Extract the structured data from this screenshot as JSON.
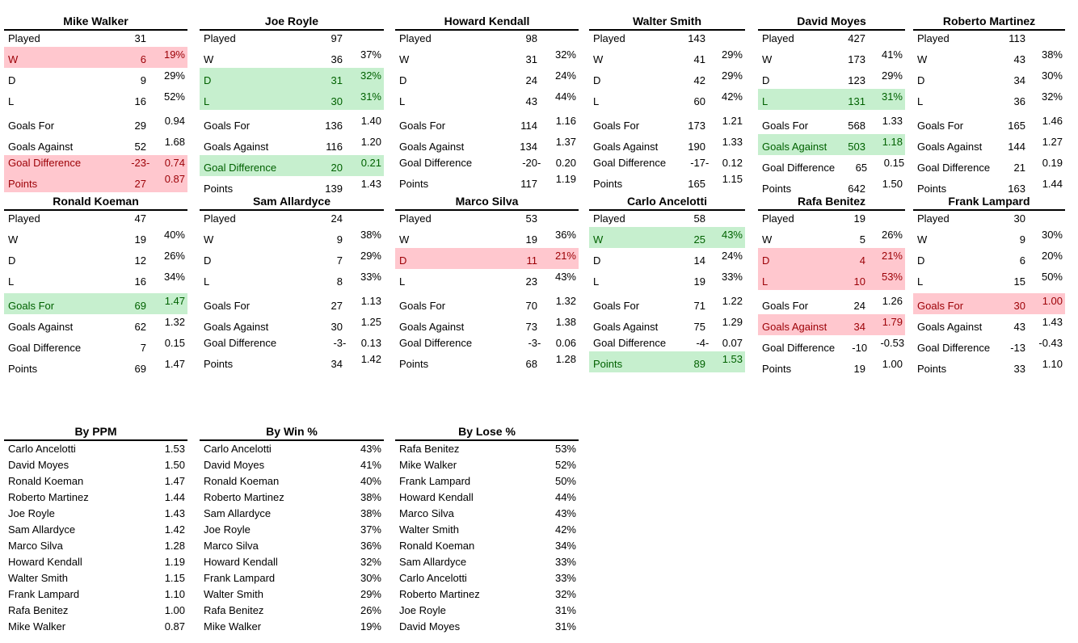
{
  "colors": {
    "bad_bg": "#FFC7CE",
    "bad_text": "#9C0006",
    "good_bg": "#C6EFCE",
    "good_text": "#006100"
  },
  "manager_tables": [
    {
      "title": "Mike Walker",
      "rows": [
        {
          "label": "Played",
          "value": "31",
          "sign": "",
          "pct": "",
          "hl": ""
        },
        {
          "label": "W",
          "value": "6",
          "sign": "",
          "pct": "19%",
          "hl": "bad"
        },
        {
          "label": "D",
          "value": "9",
          "sign": "",
          "pct": "29%",
          "hl": ""
        },
        {
          "label": "L",
          "value": "16",
          "sign": "",
          "pct": "52%",
          "hl": ""
        },
        {
          "label": "Goals For",
          "value": "29",
          "sign": "",
          "pct": "0.94",
          "hl": ""
        },
        {
          "label": "Goals Against",
          "value": "52",
          "sign": "",
          "pct": "1.68",
          "hl": ""
        },
        {
          "label": "Goal Difference",
          "value": "-23",
          "sign": "-",
          "pct": "0.74",
          "hl": "bad"
        },
        {
          "label": "Points",
          "value": "27",
          "sign": "",
          "pct": "0.87",
          "hl": "bad"
        }
      ]
    },
    {
      "title": "Joe Royle",
      "rows": [
        {
          "label": "Played",
          "value": "97",
          "sign": "",
          "pct": "",
          "hl": ""
        },
        {
          "label": "W",
          "value": "36",
          "sign": "",
          "pct": "37%",
          "hl": ""
        },
        {
          "label": "D",
          "value": "31",
          "sign": "",
          "pct": "32%",
          "hl": "good"
        },
        {
          "label": "L",
          "value": "30",
          "sign": "",
          "pct": "31%",
          "hl": "good"
        },
        {
          "label": "Goals For",
          "value": "136",
          "sign": "",
          "pct": "1.40",
          "hl": ""
        },
        {
          "label": "Goals Against",
          "value": "116",
          "sign": "",
          "pct": "1.20",
          "hl": ""
        },
        {
          "label": "Goal Difference",
          "value": "20",
          "sign": "",
          "pct": "0.21",
          "hl": "good"
        },
        {
          "label": "Points",
          "value": "139",
          "sign": "",
          "pct": "1.43",
          "hl": ""
        }
      ]
    },
    {
      "title": "Howard Kendall",
      "rows": [
        {
          "label": "Played",
          "value": "98",
          "sign": "",
          "pct": "",
          "hl": ""
        },
        {
          "label": "W",
          "value": "31",
          "sign": "",
          "pct": "32%",
          "hl": ""
        },
        {
          "label": "D",
          "value": "24",
          "sign": "",
          "pct": "24%",
          "hl": ""
        },
        {
          "label": "L",
          "value": "43",
          "sign": "",
          "pct": "44%",
          "hl": ""
        },
        {
          "label": "Goals For",
          "value": "114",
          "sign": "",
          "pct": "1.16",
          "hl": ""
        },
        {
          "label": "Goals Against",
          "value": "134",
          "sign": "",
          "pct": "1.37",
          "hl": ""
        },
        {
          "label": "Goal Difference",
          "value": "-20",
          "sign": "-",
          "pct": "0.20",
          "hl": ""
        },
        {
          "label": "Points",
          "value": "117",
          "sign": "",
          "pct": "1.19",
          "hl": ""
        }
      ]
    },
    {
      "title": "Walter Smith",
      "rows": [
        {
          "label": "Played",
          "value": "143",
          "sign": "",
          "pct": "",
          "hl": ""
        },
        {
          "label": "W",
          "value": "41",
          "sign": "",
          "pct": "29%",
          "hl": ""
        },
        {
          "label": "D",
          "value": "42",
          "sign": "",
          "pct": "29%",
          "hl": ""
        },
        {
          "label": "L",
          "value": "60",
          "sign": "",
          "pct": "42%",
          "hl": ""
        },
        {
          "label": "Goals For",
          "value": "173",
          "sign": "",
          "pct": "1.21",
          "hl": ""
        },
        {
          "label": "Goals Against",
          "value": "190",
          "sign": "",
          "pct": "1.33",
          "hl": ""
        },
        {
          "label": "Goal Difference",
          "value": "-17",
          "sign": "-",
          "pct": "0.12",
          "hl": ""
        },
        {
          "label": "Points",
          "value": "165",
          "sign": "",
          "pct": "1.15",
          "hl": ""
        }
      ]
    },
    {
      "title": "David Moyes",
      "rows": [
        {
          "label": "Played",
          "value": "427",
          "sign": "",
          "pct": "",
          "hl": ""
        },
        {
          "label": "W",
          "value": "173",
          "sign": "",
          "pct": "41%",
          "hl": ""
        },
        {
          "label": "D",
          "value": "123",
          "sign": "",
          "pct": "29%",
          "hl": ""
        },
        {
          "label": "L",
          "value": "131",
          "sign": "",
          "pct": "31%",
          "hl": "good"
        },
        {
          "label": "Goals For",
          "value": "568",
          "sign": "",
          "pct": "1.33",
          "hl": ""
        },
        {
          "label": "Goals Against",
          "value": "503",
          "sign": "",
          "pct": "1.18",
          "hl": "good"
        },
        {
          "label": "Goal Difference",
          "value": "65",
          "sign": "",
          "pct": "0.15",
          "hl": ""
        },
        {
          "label": "Points",
          "value": "642",
          "sign": "",
          "pct": "1.50",
          "hl": ""
        }
      ]
    },
    {
      "title": "Roberto Martinez",
      "rows": [
        {
          "label": "Played",
          "value": "113",
          "sign": "",
          "pct": "",
          "hl": ""
        },
        {
          "label": "W",
          "value": "43",
          "sign": "",
          "pct": "38%",
          "hl": ""
        },
        {
          "label": "D",
          "value": "34",
          "sign": "",
          "pct": "30%",
          "hl": ""
        },
        {
          "label": "L",
          "value": "36",
          "sign": "",
          "pct": "32%",
          "hl": ""
        },
        {
          "label": "Goals For",
          "value": "165",
          "sign": "",
          "pct": "1.46",
          "hl": ""
        },
        {
          "label": "Goals Against",
          "value": "144",
          "sign": "",
          "pct": "1.27",
          "hl": ""
        },
        {
          "label": "Goal Difference",
          "value": "21",
          "sign": "",
          "pct": "0.19",
          "hl": ""
        },
        {
          "label": "Points",
          "value": "163",
          "sign": "",
          "pct": "1.44",
          "hl": ""
        }
      ]
    },
    {
      "title": "Ronald Koeman",
      "rows": [
        {
          "label": "Played",
          "value": "47",
          "sign": "",
          "pct": "",
          "hl": ""
        },
        {
          "label": "W",
          "value": "19",
          "sign": "",
          "pct": "40%",
          "hl": ""
        },
        {
          "label": "D",
          "value": "12",
          "sign": "",
          "pct": "26%",
          "hl": ""
        },
        {
          "label": "L",
          "value": "16",
          "sign": "",
          "pct": "34%",
          "hl": ""
        },
        {
          "label": "Goals For",
          "value": "69",
          "sign": "",
          "pct": "1.47",
          "hl": "good"
        },
        {
          "label": "Goals Against",
          "value": "62",
          "sign": "",
          "pct": "1.32",
          "hl": ""
        },
        {
          "label": "Goal Difference",
          "value": "7",
          "sign": "",
          "pct": "0.15",
          "hl": ""
        },
        {
          "label": "Points",
          "value": "69",
          "sign": "",
          "pct": "1.47",
          "hl": ""
        }
      ]
    },
    {
      "title": "Sam Allardyce",
      "rows": [
        {
          "label": "Played",
          "value": "24",
          "sign": "",
          "pct": "",
          "hl": ""
        },
        {
          "label": "W",
          "value": "9",
          "sign": "",
          "pct": "38%",
          "hl": ""
        },
        {
          "label": "D",
          "value": "7",
          "sign": "",
          "pct": "29%",
          "hl": ""
        },
        {
          "label": "L",
          "value": "8",
          "sign": "",
          "pct": "33%",
          "hl": ""
        },
        {
          "label": "Goals For",
          "value": "27",
          "sign": "",
          "pct": "1.13",
          "hl": ""
        },
        {
          "label": "Goals Against",
          "value": "30",
          "sign": "",
          "pct": "1.25",
          "hl": ""
        },
        {
          "label": "Goal Difference",
          "value": "-3",
          "sign": "-",
          "pct": "0.13",
          "hl": ""
        },
        {
          "label": "Points",
          "value": "34",
          "sign": "",
          "pct": "1.42",
          "hl": ""
        }
      ]
    },
    {
      "title": "Marco Silva",
      "rows": [
        {
          "label": "Played",
          "value": "53",
          "sign": "",
          "pct": "",
          "hl": ""
        },
        {
          "label": "W",
          "value": "19",
          "sign": "",
          "pct": "36%",
          "hl": ""
        },
        {
          "label": "D",
          "value": "11",
          "sign": "",
          "pct": "21%",
          "hl": "bad"
        },
        {
          "label": "L",
          "value": "23",
          "sign": "",
          "pct": "43%",
          "hl": ""
        },
        {
          "label": "Goals For",
          "value": "70",
          "sign": "",
          "pct": "1.32",
          "hl": ""
        },
        {
          "label": "Goals Against",
          "value": "73",
          "sign": "",
          "pct": "1.38",
          "hl": ""
        },
        {
          "label": "Goal Difference",
          "value": "-3",
          "sign": "-",
          "pct": "0.06",
          "hl": ""
        },
        {
          "label": "Points",
          "value": "68",
          "sign": "",
          "pct": "1.28",
          "hl": ""
        }
      ]
    },
    {
      "title": "Carlo Ancelotti",
      "rows": [
        {
          "label": "Played",
          "value": "58",
          "sign": "",
          "pct": "",
          "hl": ""
        },
        {
          "label": "W",
          "value": "25",
          "sign": "",
          "pct": "43%",
          "hl": "good"
        },
        {
          "label": "D",
          "value": "14",
          "sign": "",
          "pct": "24%",
          "hl": ""
        },
        {
          "label": "L",
          "value": "19",
          "sign": "",
          "pct": "33%",
          "hl": ""
        },
        {
          "label": "Goals For",
          "value": "71",
          "sign": "",
          "pct": "1.22",
          "hl": ""
        },
        {
          "label": "Goals Against",
          "value": "75",
          "sign": "",
          "pct": "1.29",
          "hl": ""
        },
        {
          "label": "Goal Difference",
          "value": "-4",
          "sign": "-",
          "pct": "0.07",
          "hl": ""
        },
        {
          "label": "Points",
          "value": "89",
          "sign": "",
          "pct": "1.53",
          "hl": "good"
        }
      ]
    },
    {
      "title": "Rafa Benitez",
      "rows": [
        {
          "label": "Played",
          "value": "19",
          "sign": "",
          "pct": "",
          "hl": ""
        },
        {
          "label": "W",
          "value": "5",
          "sign": "",
          "pct": "26%",
          "hl": ""
        },
        {
          "label": "D",
          "value": "4",
          "sign": "",
          "pct": "21%",
          "hl": "bad"
        },
        {
          "label": "L",
          "value": "10",
          "sign": "",
          "pct": "53%",
          "hl": "bad"
        },
        {
          "label": "Goals For",
          "value": "24",
          "sign": "",
          "pct": "1.26",
          "hl": ""
        },
        {
          "label": "Goals Against",
          "value": "34",
          "sign": "",
          "pct": "1.79",
          "hl": "bad"
        },
        {
          "label": "Goal Difference",
          "value": "-10",
          "sign": "",
          "pct": "-0.53",
          "hl": ""
        },
        {
          "label": "Points",
          "value": "19",
          "sign": "",
          "pct": "1.00",
          "hl": ""
        }
      ]
    },
    {
      "title": "Frank Lampard",
      "rows": [
        {
          "label": "Played",
          "value": "30",
          "sign": "",
          "pct": "",
          "hl": ""
        },
        {
          "label": "W",
          "value": "9",
          "sign": "",
          "pct": "30%",
          "hl": ""
        },
        {
          "label": "D",
          "value": "6",
          "sign": "",
          "pct": "20%",
          "hl": ""
        },
        {
          "label": "L",
          "value": "15",
          "sign": "",
          "pct": "50%",
          "hl": ""
        },
        {
          "label": "Goals For",
          "value": "30",
          "sign": "",
          "pct": "1.00",
          "hl": "bad"
        },
        {
          "label": "Goals Against",
          "value": "43",
          "sign": "",
          "pct": "1.43",
          "hl": ""
        },
        {
          "label": "Goal Difference",
          "value": "-13",
          "sign": "",
          "pct": "-0.43",
          "hl": ""
        },
        {
          "label": "Points",
          "value": "33",
          "sign": "",
          "pct": "1.10",
          "hl": ""
        }
      ]
    }
  ],
  "ranking_tables": [
    {
      "title": "By PPM",
      "rows": [
        {
          "name": "Carlo Ancelotti",
          "value": "1.53"
        },
        {
          "name": "David Moyes",
          "value": "1.50"
        },
        {
          "name": "Ronald Koeman",
          "value": "1.47"
        },
        {
          "name": "Roberto Martinez",
          "value": "1.44"
        },
        {
          "name": "Joe Royle",
          "value": "1.43"
        },
        {
          "name": "Sam Allardyce",
          "value": "1.42"
        },
        {
          "name": "Marco Silva",
          "value": "1.28"
        },
        {
          "name": "Howard Kendall",
          "value": "1.19"
        },
        {
          "name": "Walter Smith",
          "value": "1.15"
        },
        {
          "name": "Frank Lampard",
          "value": "1.10"
        },
        {
          "name": "Rafa Benitez",
          "value": "1.00"
        },
        {
          "name": "Mike Walker",
          "value": "0.87"
        }
      ]
    },
    {
      "title": "By Win %",
      "rows": [
        {
          "name": "Carlo Ancelotti",
          "value": "43%"
        },
        {
          "name": "David Moyes",
          "value": "41%"
        },
        {
          "name": "Ronald Koeman",
          "value": "40%"
        },
        {
          "name": "Roberto Martinez",
          "value": "38%"
        },
        {
          "name": "Sam Allardyce",
          "value": "38%"
        },
        {
          "name": "Joe Royle",
          "value": "37%"
        },
        {
          "name": "Marco Silva",
          "value": "36%"
        },
        {
          "name": "Howard Kendall",
          "value": "32%"
        },
        {
          "name": "Frank Lampard",
          "value": "30%"
        },
        {
          "name": "Walter Smith",
          "value": "29%"
        },
        {
          "name": "Rafa Benitez",
          "value": "26%"
        },
        {
          "name": "Mike Walker",
          "value": "19%"
        }
      ]
    },
    {
      "title": "By Lose %",
      "rows": [
        {
          "name": "Rafa Benitez",
          "value": "53%"
        },
        {
          "name": "Mike Walker",
          "value": "52%"
        },
        {
          "name": "Frank Lampard",
          "value": "50%"
        },
        {
          "name": "Howard Kendall",
          "value": "44%"
        },
        {
          "name": "Marco Silva",
          "value": "43%"
        },
        {
          "name": "Walter Smith",
          "value": "42%"
        },
        {
          "name": "Ronald Koeman",
          "value": "34%"
        },
        {
          "name": "Sam Allardyce",
          "value": "33%"
        },
        {
          "name": "Carlo Ancelotti",
          "value": "33%"
        },
        {
          "name": "Roberto Martinez",
          "value": "32%"
        },
        {
          "name": "Joe Royle",
          "value": "31%"
        },
        {
          "name": "David Moyes",
          "value": "31%"
        }
      ]
    }
  ]
}
